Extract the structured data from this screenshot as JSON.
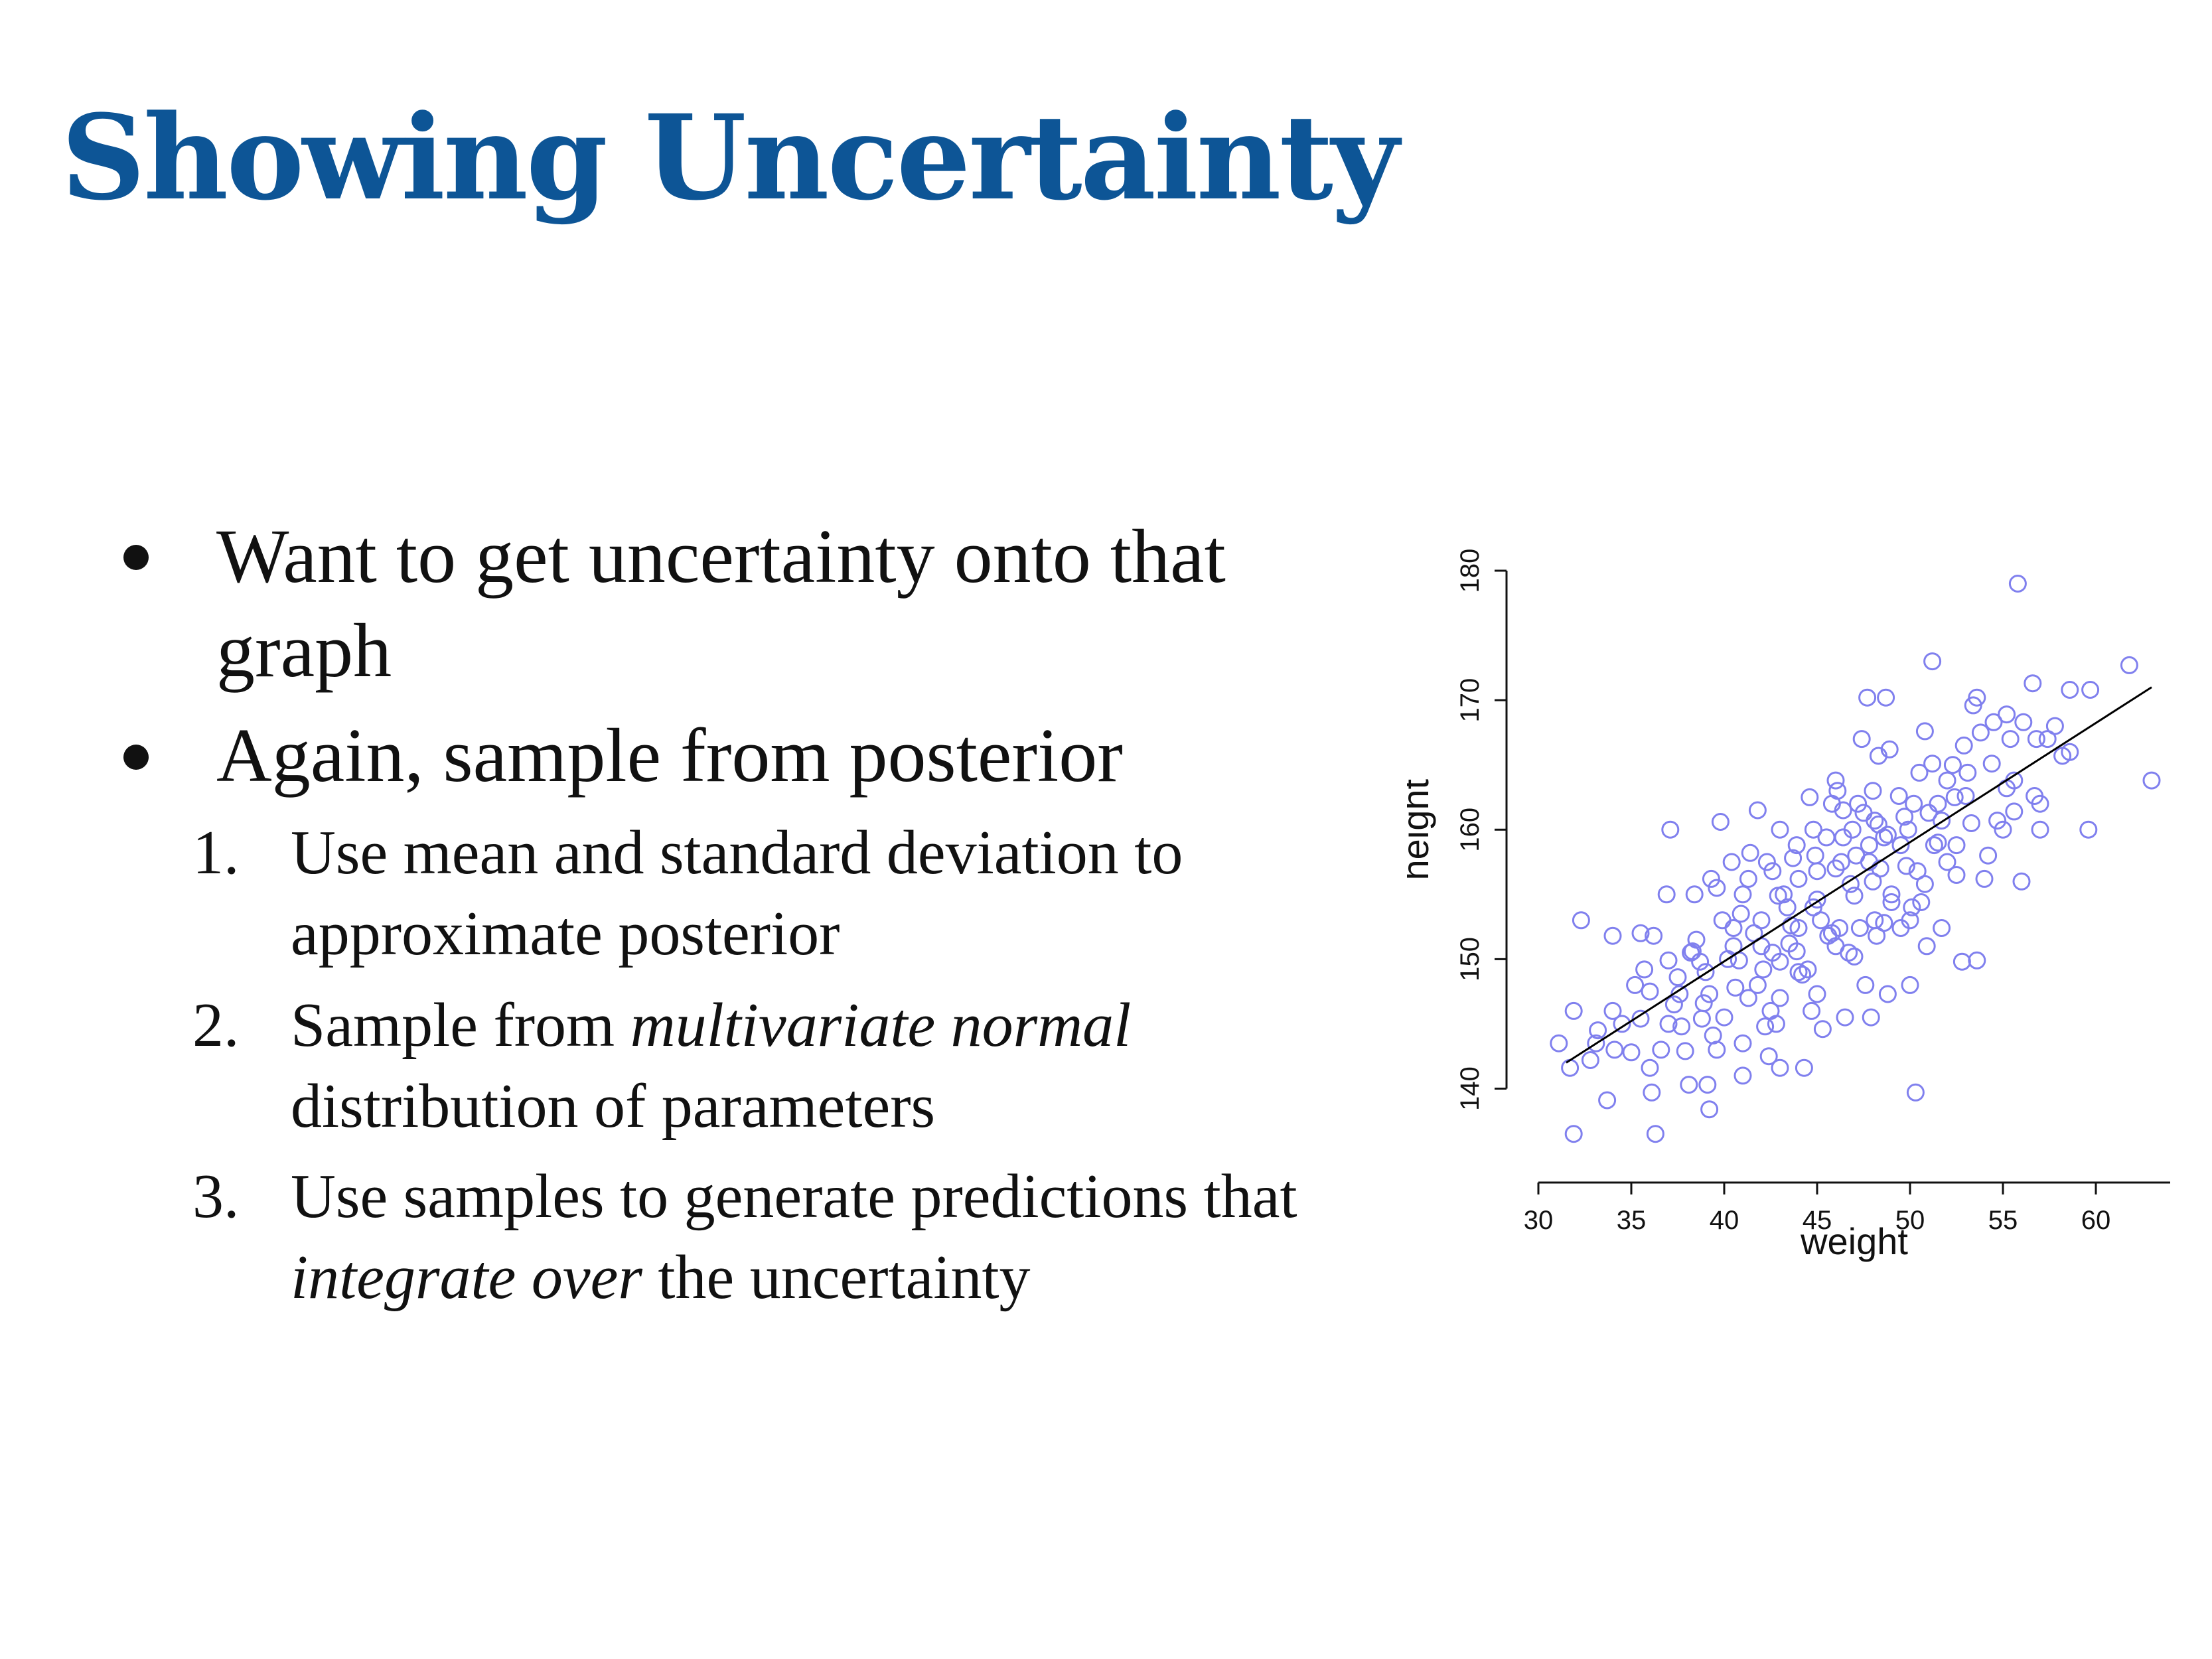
{
  "slide": {
    "title": "Showing Uncertainty",
    "bullets": [
      {
        "lines": [
          "Want to get uncertainty onto that",
          "graph"
        ]
      },
      {
        "lines": [
          "Again, sample from posterior"
        ]
      }
    ],
    "steps": [
      {
        "number": "1.",
        "line1": "Use mean and standard deviation to",
        "line2": "approximate posterior"
      },
      {
        "number": "2.",
        "line1_prefix": "Sample from ",
        "line1_em": "multivariate normal",
        "line2": "distribution of parameters"
      },
      {
        "number": "3.",
        "line1": "Use samples to generate predictions that",
        "line2_em": "integrate over",
        "line2_suffix": " the uncertainty"
      }
    ]
  },
  "chart_data": {
    "type": "scatter",
    "xlabel": "weight",
    "ylabel": "height",
    "xlim": [
      30,
      64
    ],
    "ylim": [
      135,
      180
    ],
    "xticks": [
      30,
      35,
      40,
      45,
      50,
      55,
      60
    ],
    "yticks": [
      140,
      150,
      160,
      170,
      180
    ],
    "x_tick_labels": [
      "30",
      "35",
      "40",
      "45",
      "50",
      "55",
      "60"
    ],
    "y_tick_labels": [
      "140",
      "150",
      "160",
      "170",
      "180"
    ],
    "point_color": "#8080ee",
    "line_color": "#000000",
    "regression_line": {
      "x": [
        31.5,
        63.0
      ],
      "y": [
        142.0,
        171.0
      ]
    },
    "points": [
      [
        55.8,
        179.0
      ],
      [
        61.8,
        172.7
      ],
      [
        51.2,
        173.0
      ],
      [
        56.6,
        171.3
      ],
      [
        47.7,
        170.2
      ],
      [
        48.7,
        170.2
      ],
      [
        53.6,
        170.2
      ],
      [
        53.4,
        169.6
      ],
      [
        55.2,
        168.9
      ],
      [
        58.6,
        170.8
      ],
      [
        59.7,
        170.8
      ],
      [
        56.1,
        168.3
      ],
      [
        54.5,
        168.3
      ],
      [
        50.8,
        167.6
      ],
      [
        56.8,
        167.0
      ],
      [
        57.4,
        167.0
      ],
      [
        55.4,
        167.0
      ],
      [
        47.4,
        167.0
      ],
      [
        52.9,
        166.5
      ],
      [
        48.9,
        166.2
      ],
      [
        48.3,
        165.7
      ],
      [
        58.2,
        165.7
      ],
      [
        51.2,
        165.1
      ],
      [
        53.1,
        164.4
      ],
      [
        55.6,
        163.8
      ],
      [
        46.0,
        163.8
      ],
      [
        52.4,
        162.5
      ],
      [
        50.2,
        162.0
      ],
      [
        57.0,
        162.0
      ],
      [
        54.7,
        160.7
      ],
      [
        59.6,
        160.0
      ],
      [
        63.0,
        163.8
      ],
      [
        51.7,
        160.7
      ],
      [
        48.1,
        160.7
      ],
      [
        47.2,
        162.0
      ],
      [
        45.8,
        162.0
      ],
      [
        44.8,
        160.0
      ],
      [
        43.0,
        160.0
      ],
      [
        41.8,
        161.5
      ],
      [
        39.8,
        160.6
      ],
      [
        37.1,
        160.0
      ],
      [
        42.3,
        157.5
      ],
      [
        44.0,
        156.2
      ],
      [
        46.3,
        157.5
      ],
      [
        47.8,
        158.8
      ],
      [
        49.5,
        158.8
      ],
      [
        51.3,
        158.8
      ],
      [
        52.5,
        158.8
      ],
      [
        54.0,
        156.2
      ],
      [
        55.0,
        160.0
      ],
      [
        49.0,
        155.0
      ],
      [
        47.0,
        154.9
      ],
      [
        45.0,
        154.6
      ],
      [
        43.2,
        155.0
      ],
      [
        41.0,
        155.0
      ],
      [
        39.6,
        155.5
      ],
      [
        38.4,
        155.0
      ],
      [
        36.9,
        155.0
      ],
      [
        40.5,
        152.4
      ],
      [
        42.0,
        153.0
      ],
      [
        44.0,
        152.4
      ],
      [
        46.2,
        152.4
      ],
      [
        48.1,
        153.0
      ],
      [
        50.0,
        153.0
      ],
      [
        51.7,
        152.4
      ],
      [
        53.6,
        149.9
      ],
      [
        52.8,
        149.8
      ],
      [
        48.2,
        151.8
      ],
      [
        46.7,
        150.5
      ],
      [
        44.5,
        149.2
      ],
      [
        42.6,
        150.5
      ],
      [
        40.8,
        149.9
      ],
      [
        38.7,
        149.8
      ],
      [
        37.0,
        149.9
      ],
      [
        36.2,
        151.8
      ],
      [
        35.5,
        152.0
      ],
      [
        34.0,
        151.8
      ],
      [
        32.3,
        153.0
      ],
      [
        35.2,
        148.0
      ],
      [
        37.6,
        147.3
      ],
      [
        39.2,
        147.3
      ],
      [
        41.3,
        147.0
      ],
      [
        43.0,
        147.0
      ],
      [
        44.7,
        146.0
      ],
      [
        46.5,
        145.5
      ],
      [
        48.8,
        147.3
      ],
      [
        50.0,
        148.0
      ],
      [
        35.5,
        145.4
      ],
      [
        37.7,
        144.8
      ],
      [
        39.4,
        144.1
      ],
      [
        41.0,
        143.5
      ],
      [
        42.8,
        145.0
      ],
      [
        31.1,
        143.5
      ],
      [
        32.8,
        142.2
      ],
      [
        34.1,
        143.0
      ],
      [
        36.0,
        141.6
      ],
      [
        37.9,
        142.9
      ],
      [
        39.1,
        140.3
      ],
      [
        41.0,
        141.0
      ],
      [
        43.0,
        141.6
      ],
      [
        44.3,
        141.6
      ],
      [
        33.7,
        139.1
      ],
      [
        36.1,
        139.7
      ],
      [
        38.1,
        140.3
      ],
      [
        31.9,
        136.5
      ],
      [
        36.3,
        136.5
      ],
      [
        39.2,
        138.4
      ],
      [
        50.3,
        139.7
      ],
      [
        31.7,
        141.6
      ],
      [
        33.1,
        143.5
      ],
      [
        34.0,
        146.0
      ],
      [
        31.9,
        146.0
      ],
      [
        37.3,
        146.5
      ],
      [
        38.8,
        145.4
      ],
      [
        42.2,
        144.8
      ],
      [
        45.0,
        147.3
      ],
      [
        47.6,
        148.0
      ],
      [
        40.5,
        151.0
      ],
      [
        35.7,
        149.2
      ],
      [
        38.2,
        150.5
      ],
      [
        39.9,
        153.0
      ],
      [
        41.6,
        152.0
      ],
      [
        43.5,
        151.2
      ],
      [
        45.6,
        151.8
      ],
      [
        47.3,
        152.4
      ],
      [
        49.0,
        154.4
      ],
      [
        50.6,
        154.4
      ],
      [
        44.8,
        154.0
      ],
      [
        42.9,
        154.9
      ],
      [
        41.3,
        156.2
      ],
      [
        39.3,
        156.2
      ],
      [
        46.0,
        157.0
      ],
      [
        47.8,
        157.5
      ],
      [
        49.9,
        160.0
      ],
      [
        48.6,
        159.4
      ],
      [
        45.5,
        159.4
      ],
      [
        43.9,
        158.8
      ],
      [
        42.6,
        156.8
      ],
      [
        40.4,
        157.5
      ],
      [
        48.0,
        163.0
      ],
      [
        49.4,
        162.6
      ],
      [
        46.4,
        161.5
      ],
      [
        47.1,
        158.0
      ],
      [
        48.4,
        157.0
      ],
      [
        50.4,
        156.8
      ],
      [
        52.0,
        157.5
      ],
      [
        53.0,
        162.6
      ],
      [
        54.4,
        165.1
      ],
      [
        56.7,
        162.6
      ],
      [
        51.0,
        161.3
      ],
      [
        46.9,
        160.0
      ],
      [
        44.9,
        158.0
      ],
      [
        43.6,
        152.6
      ],
      [
        42.0,
        151.0
      ],
      [
        39.0,
        149.0
      ],
      [
        37.5,
        148.6
      ],
      [
        36.0,
        147.5
      ],
      [
        38.5,
        151.5
      ],
      [
        41.8,
        148.0
      ],
      [
        43.0,
        149.8
      ],
      [
        45.2,
        153.0
      ],
      [
        46.8,
        155.8
      ],
      [
        48.0,
        156.0
      ],
      [
        49.8,
        157.2
      ],
      [
        51.5,
        159.0
      ],
      [
        53.3,
        160.5
      ],
      [
        55.6,
        161.4
      ],
      [
        57.8,
        168.0
      ],
      [
        55.2,
        163.2
      ],
      [
        52.0,
        163.8
      ],
      [
        50.5,
        164.4
      ],
      [
        48.3,
        160.4
      ],
      [
        46.4,
        159.4
      ],
      [
        45.0,
        156.8
      ],
      [
        43.4,
        154.0
      ],
      [
        40.2,
        150.0
      ],
      [
        38.9,
        146.6
      ],
      [
        36.6,
        143.0
      ],
      [
        34.5,
        145.0
      ],
      [
        40.0,
        145.5
      ],
      [
        42.5,
        146.0
      ],
      [
        44.0,
        149.0
      ],
      [
        47.0,
        150.2
      ],
      [
        49.5,
        152.4
      ],
      [
        50.8,
        155.8
      ],
      [
        52.5,
        156.5
      ],
      [
        54.2,
        158.0
      ],
      [
        57.0,
        160.0
      ],
      [
        56.0,
        156.0
      ],
      [
        58.6,
        166.0
      ],
      [
        53.8,
        167.5
      ],
      [
        52.3,
        165.0
      ],
      [
        51.5,
        162.0
      ],
      [
        49.7,
        161.0
      ],
      [
        48.8,
        159.6
      ],
      [
        47.5,
        161.3
      ],
      [
        46.1,
        163.0
      ],
      [
        44.6,
        162.5
      ],
      [
        43.7,
        157.8
      ],
      [
        41.4,
        158.2
      ],
      [
        40.9,
        153.5
      ],
      [
        38.3,
        150.6
      ],
      [
        37.0,
        145.0
      ],
      [
        35.0,
        142.8
      ],
      [
        33.2,
        144.5
      ],
      [
        39.6,
        143.0
      ],
      [
        42.4,
        142.5
      ],
      [
        45.3,
        144.6
      ],
      [
        47.9,
        145.5
      ],
      [
        50.9,
        151.0
      ],
      [
        44.2,
        148.8
      ],
      [
        46.0,
        151.0
      ],
      [
        48.6,
        152.8
      ],
      [
        50.1,
        154.0
      ],
      [
        45.8,
        152.0
      ],
      [
        43.9,
        150.6
      ],
      [
        42.1,
        149.2
      ],
      [
        40.6,
        147.8
      ]
    ]
  }
}
